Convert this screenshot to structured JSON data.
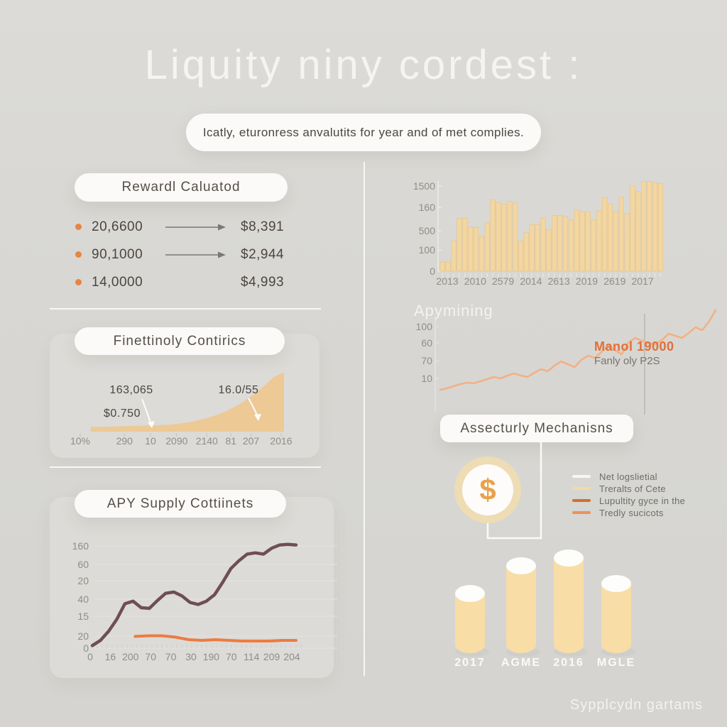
{
  "title": "Liquity niny cordest :",
  "subtitle": "Icatly, eturonress anvalutits for year and of met complies.",
  "footer": "Sypplcydn gartams",
  "colors": {
    "background": "#d8d7d3",
    "card_white": "#fbfaf8",
    "panel": "#dcdbd7",
    "tan_bar": "#f3d6a0",
    "area_fill": "#edc995",
    "dark_line": "#6e4e55",
    "accent_orange": "#ed7b41",
    "soft_orange_line": "#f2b185",
    "dollar_orange": "#e8a24c",
    "text_dark": "#4b4640",
    "axis_text": "#8f8d87",
    "white_text": "#f5f4f0"
  },
  "reward_card": {
    "title": "Rewardl Caluatod",
    "bullet_color": "#e8853f",
    "rows": [
      {
        "amount": "20,6600",
        "has_arrow": true,
        "value": "$8,391"
      },
      {
        "amount": "90,1000",
        "has_arrow": true,
        "value": "$2,944"
      },
      {
        "amount": "14,0000",
        "has_arrow": false,
        "value": "$4,993"
      }
    ]
  },
  "security": {
    "title": "Assecturly Mechanisns",
    "icon_glyph": "$",
    "legend": [
      {
        "color": "#f7f6f2",
        "label": "Net logslietial"
      },
      {
        "color": "#f4daa2",
        "label": "Treralts of Cete"
      },
      {
        "color": "#d46f2d",
        "label": "Lupultity gyce in the"
      },
      {
        "color": "#e9945a",
        "label": "Tredly sucicots"
      }
    ]
  },
  "chart_data": [
    {
      "id": "yearly-volume-bars",
      "type": "bar",
      "title": "",
      "legend_position": "none",
      "grid": false,
      "ylim": [
        0,
        1500
      ],
      "y_tick_labels": [
        "1500",
        "160",
        "500",
        "100",
        "0"
      ],
      "x_tick_labels": [
        "2013",
        "2010",
        "2579",
        "2014",
        "2613",
        "2019",
        "2619",
        "2017"
      ],
      "bar_color": "#f3d6a0",
      "bar_stroke": "#e3c389",
      "values": [
        150,
        150,
        495,
        870,
        870,
        720,
        720,
        570,
        795,
        1170,
        1125,
        1095,
        1140,
        1125,
        495,
        630,
        765,
        765,
        870,
        675,
        915,
        915,
        900,
        840,
        1005,
        975,
        975,
        840,
        990,
        1200,
        1095,
        975,
        1215,
        945,
        1395,
        1305,
        1470,
        1470,
        1455,
        1440
      ]
    },
    {
      "id": "apymining-line",
      "type": "line",
      "title": "Apymining",
      "grid": false,
      "y_tick_labels": [
        "100",
        "60",
        "70",
        "10"
      ],
      "line_color": "#f2b185",
      "marker_line_frac": 0.742,
      "values": [
        7,
        9,
        12,
        15,
        17,
        16,
        19,
        22,
        25,
        23,
        27,
        30,
        27,
        25,
        31,
        36,
        33,
        41,
        47,
        43,
        39,
        49,
        55,
        52,
        60,
        70,
        63,
        57,
        73,
        80,
        76,
        73,
        71,
        77,
        86,
        83,
        80,
        87,
        95,
        91,
        103,
        119
      ],
      "annotations": [
        {
          "text": "Manol 19000",
          "color": "#e0703a"
        },
        {
          "text": "Fanly oly P2S",
          "color": "#77756f"
        }
      ]
    },
    {
      "id": "finettinoly-area",
      "type": "area",
      "title": "Finettinoly Contirics",
      "grid": false,
      "fill_color": "#edc995",
      "x_tick_labels": [
        "10%",
        "290",
        "10",
        "2090",
        "2140",
        "81",
        "207",
        "2016"
      ],
      "values": [
        8,
        8,
        8.5,
        9,
        9.5,
        10,
        10.5,
        11,
        12,
        14,
        17,
        21,
        26,
        32,
        40,
        50,
        62,
        76,
        92,
        100
      ],
      "annotations": [
        {
          "text": "163,065"
        },
        {
          "text": "$0.750"
        },
        {
          "text": "16.0/55"
        }
      ]
    },
    {
      "id": "apy-supply-lines",
      "type": "line",
      "title": "APY Supply Cottiinets",
      "grid": true,
      "ylim": [
        0,
        160
      ],
      "y_tick_labels": [
        "160",
        "60",
        "20",
        "40",
        "15",
        "20",
        "0"
      ],
      "x_tick_labels": [
        "0",
        "16",
        "200",
        "70",
        "70",
        "30",
        "190",
        "70",
        "114",
        "209",
        "204"
      ],
      "series": [
        {
          "name": "supply",
          "color": "#6e4e55",
          "x_start": 0,
          "values": [
            4,
            12,
            26,
            44,
            68,
            72,
            62,
            61,
            73,
            84,
            86,
            80,
            70,
            67,
            72,
            82,
            101,
            122,
            134,
            144,
            146,
            144,
            153,
            158,
            159,
            158
          ]
        },
        {
          "name": "apy",
          "color": "#ed7b41",
          "x_start": 0.21,
          "values": [
            18,
            19,
            19,
            17,
            13,
            12,
            13,
            12,
            11,
            11,
            11,
            12,
            12
          ]
        }
      ]
    },
    {
      "id": "period-cylinders",
      "type": "bar",
      "style": "cylinder",
      "bar_color": "#f8dda6",
      "categories": [
        "2017",
        "AGME",
        "2016",
        "MGLE"
      ],
      "values": [
        84,
        123,
        134,
        98
      ]
    }
  ]
}
